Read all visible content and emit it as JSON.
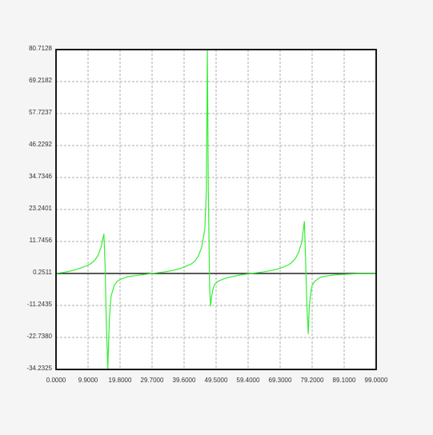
{
  "chart_data": {
    "type": "line",
    "title": "",
    "xlabel": "",
    "ylabel": "",
    "xlim": [
      0,
      99
    ],
    "ylim": [
      -34.2325,
      80.7128
    ],
    "grid": true,
    "x_ticks": [
      "0.0000",
      "9.9000",
      "19.8000",
      "29.7000",
      "39.6000",
      "49.5000",
      "59.4000",
      "69.3000",
      "79.2000",
      "89.1000",
      "99.0000"
    ],
    "y_ticks": [
      "80.7128",
      "69.2182",
      "57.7237",
      "46.2292",
      "34.7346",
      "23.2401",
      "11.7456",
      "0.2511",
      "-11.2435",
      "-22.7380",
      "-34.2325"
    ],
    "x_tick_values": [
      0,
      9.9,
      19.8,
      29.7,
      39.6,
      49.5,
      59.4,
      69.3,
      79.2,
      89.1,
      99
    ],
    "y_tick_values": [
      80.7128,
      69.2182,
      57.7237,
      46.2292,
      34.7346,
      23.2401,
      11.7456,
      0.2511,
      -11.2435,
      -22.738,
      -34.2325
    ],
    "baseline": 0.2511,
    "series": [
      {
        "color": "#33ee33",
        "x": [
          0,
          2,
          4,
          6,
          8,
          10,
          11,
          12,
          13,
          14,
          14.8,
          15.2,
          15.5,
          16,
          16.5,
          17,
          18,
          19,
          20,
          22,
          24,
          26,
          28,
          30,
          32,
          34,
          36,
          38,
          40,
          42,
          43,
          44,
          45,
          46,
          46.5,
          46.8,
          47.1,
          47.5,
          47.8,
          48.1,
          48.5,
          49,
          50,
          52,
          54,
          56,
          58,
          60,
          62,
          64,
          66,
          68,
          70,
          72,
          73,
          74,
          75,
          76,
          76.8,
          77.2,
          77.6,
          78.0,
          78.3,
          78.8,
          79.2,
          80,
          81,
          82,
          84,
          86,
          88,
          90,
          92,
          94,
          96,
          98,
          99
        ],
        "y": [
          0.3,
          0.6,
          1.0,
          1.6,
          2.4,
          3.3,
          4.0,
          5.0,
          6.8,
          10.0,
          14.5,
          2.0,
          -15.0,
          -34.2,
          -16.0,
          -8.0,
          -4.0,
          -2.5,
          -1.8,
          -1.0,
          -0.6,
          -0.3,
          0.0,
          0.3,
          0.6,
          0.9,
          1.3,
          1.9,
          2.7,
          3.8,
          4.8,
          6.5,
          9.5,
          16.0,
          30.0,
          80.7,
          30.0,
          -5.0,
          -11.5,
          -8.0,
          -5.5,
          -3.8,
          -2.6,
          -1.6,
          -1.0,
          -0.5,
          -0.1,
          0.2,
          0.5,
          0.8,
          1.2,
          1.7,
          2.4,
          3.4,
          4.3,
          5.6,
          7.8,
          11.5,
          19.0,
          4.0,
          -12.0,
          -21.5,
          -12.0,
          -6.5,
          -4.0,
          -2.6,
          -1.7,
          -1.0,
          -0.6,
          -0.3,
          -0.1,
          0.0,
          0.1,
          0.2,
          0.2,
          0.2,
          0.2
        ]
      }
    ]
  }
}
